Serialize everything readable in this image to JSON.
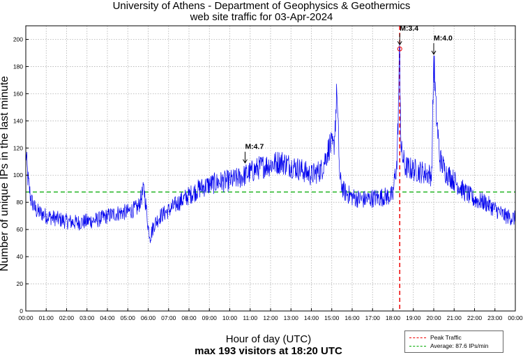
{
  "chart_data": {
    "type": "line",
    "title": "University of Athens - Department of Geophysics & Geothermics",
    "subtitle_top": "web site traffic for 03-Apr-2024",
    "xlabel": "Hour of day (UTC)",
    "ylabel": "Number of unique IPs in the last minute",
    "footer": "max 193 visitors at 18:20 UTC",
    "xlim": [
      0,
      24
    ],
    "ylim": [
      0,
      210
    ],
    "grid": true,
    "x_ticks": [
      "00:00",
      "01:00",
      "02:00",
      "03:00",
      "04:00",
      "05:00",
      "06:00",
      "07:00",
      "08:00",
      "09:00",
      "10:00",
      "11:00",
      "12:00",
      "13:00",
      "14:00",
      "15:00",
      "16:00",
      "17:00",
      "18:00",
      "19:00",
      "20:00",
      "21:00",
      "22:00",
      "23:00",
      "00:00"
    ],
    "y_ticks": [
      0,
      20,
      40,
      60,
      80,
      100,
      120,
      140,
      160,
      180,
      200
    ],
    "series": [
      {
        "name": "visitors",
        "color": "#0000ee",
        "x": [
          0.0,
          0.1,
          0.25,
          0.5,
          1.0,
          1.5,
          2.0,
          2.5,
          3.0,
          3.5,
          4.0,
          4.5,
          5.0,
          5.5,
          5.8,
          6.0,
          6.1,
          6.3,
          6.6,
          7.0,
          7.5,
          8.0,
          8.5,
          9.0,
          9.5,
          10.0,
          10.5,
          11.0,
          11.5,
          12.0,
          12.5,
          13.0,
          13.5,
          14.0,
          14.5,
          14.9,
          15.1,
          15.25,
          15.4,
          15.6,
          16.0,
          16.5,
          17.0,
          17.5,
          18.0,
          18.1,
          18.2,
          18.33,
          18.4,
          18.6,
          19.0,
          19.5,
          19.9,
          20.0,
          20.1,
          20.3,
          20.6,
          21.0,
          21.5,
          22.0,
          22.5,
          23.0,
          23.5,
          24.0
        ],
        "y": [
          118,
          98,
          82,
          74,
          70,
          68,
          66,
          65,
          66,
          67,
          70,
          72,
          73,
          76,
          90,
          62,
          55,
          64,
          70,
          74,
          80,
          85,
          90,
          93,
          95,
          96,
          98,
          102,
          106,
          108,
          110,
          107,
          104,
          100,
          104,
          122,
          120,
          160,
          96,
          88,
          84,
          82,
          83,
          84,
          85,
          100,
          108,
          193,
          118,
          106,
          104,
          102,
          100,
          188,
          150,
          112,
          102,
          96,
          88,
          82,
          80,
          75,
          70,
          68
        ]
      }
    ],
    "reference_lines": [
      {
        "name": "Peak Traffic",
        "orientation": "vertical",
        "x": 18.333,
        "color": "#ee0000",
        "style": "dashed"
      },
      {
        "name": "Average: 87.6 IPs/min",
        "orientation": "horizontal",
        "y": 87.6,
        "color": "#00aa00",
        "style": "dashed"
      }
    ],
    "peak_marker": {
      "x": 18.333,
      "y": 193
    },
    "annotations": [
      {
        "text": "M:4.7",
        "x": 10.75,
        "y": 108
      },
      {
        "text": "M:3.4",
        "x": 18.333,
        "y": 195
      },
      {
        "text": "M:4.0",
        "x": 20.0,
        "y": 188
      }
    ],
    "legend": {
      "position": "bottom-right",
      "entries": [
        {
          "label": "Peak Traffic",
          "color": "#ee0000"
        },
        {
          "label": "Average: 87.6 IPs/min",
          "color": "#00aa00"
        }
      ]
    }
  }
}
